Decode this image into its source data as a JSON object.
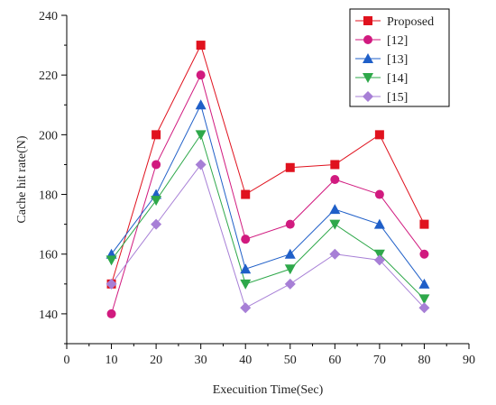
{
  "chart_data": {
    "type": "line",
    "xlabel": "Execuition Time(Sec)",
    "ylabel": "Cache hit rate(N)",
    "xlim": [
      0,
      90
    ],
    "ylim": [
      130,
      240
    ],
    "x_ticks": [
      "0",
      "10",
      "20",
      "30",
      "40",
      "50",
      "60",
      "70",
      "80",
      "90"
    ],
    "y_ticks": [
      "140",
      "160",
      "180",
      "200",
      "220",
      "240"
    ],
    "grid": false,
    "legend_position": "top-right",
    "x": [
      10,
      20,
      30,
      40,
      50,
      60,
      70,
      80
    ],
    "series": [
      {
        "name": "Proposed",
        "color": "#e0121e",
        "marker": "square",
        "values": [
          150,
          200,
          230,
          180,
          189,
          190,
          200,
          170
        ]
      },
      {
        "name": "[12]",
        "color": "#d11a7f",
        "marker": "circle",
        "values": [
          140,
          190,
          220,
          165,
          170,
          185,
          180,
          160
        ]
      },
      {
        "name": "[13]",
        "color": "#1f5fc8",
        "marker": "triangle-up",
        "values": [
          160,
          180,
          210,
          155,
          160,
          175,
          170,
          150
        ]
      },
      {
        "name": "[14]",
        "color": "#2ea84a",
        "marker": "triangle-down",
        "values": [
          158,
          178,
          200,
          150,
          155,
          170,
          160,
          145
        ]
      },
      {
        "name": "[15]",
        "color": "#a77fd6",
        "marker": "diamond",
        "values": [
          150,
          170,
          190,
          142,
          150,
          160,
          158,
          142
        ]
      }
    ]
  }
}
